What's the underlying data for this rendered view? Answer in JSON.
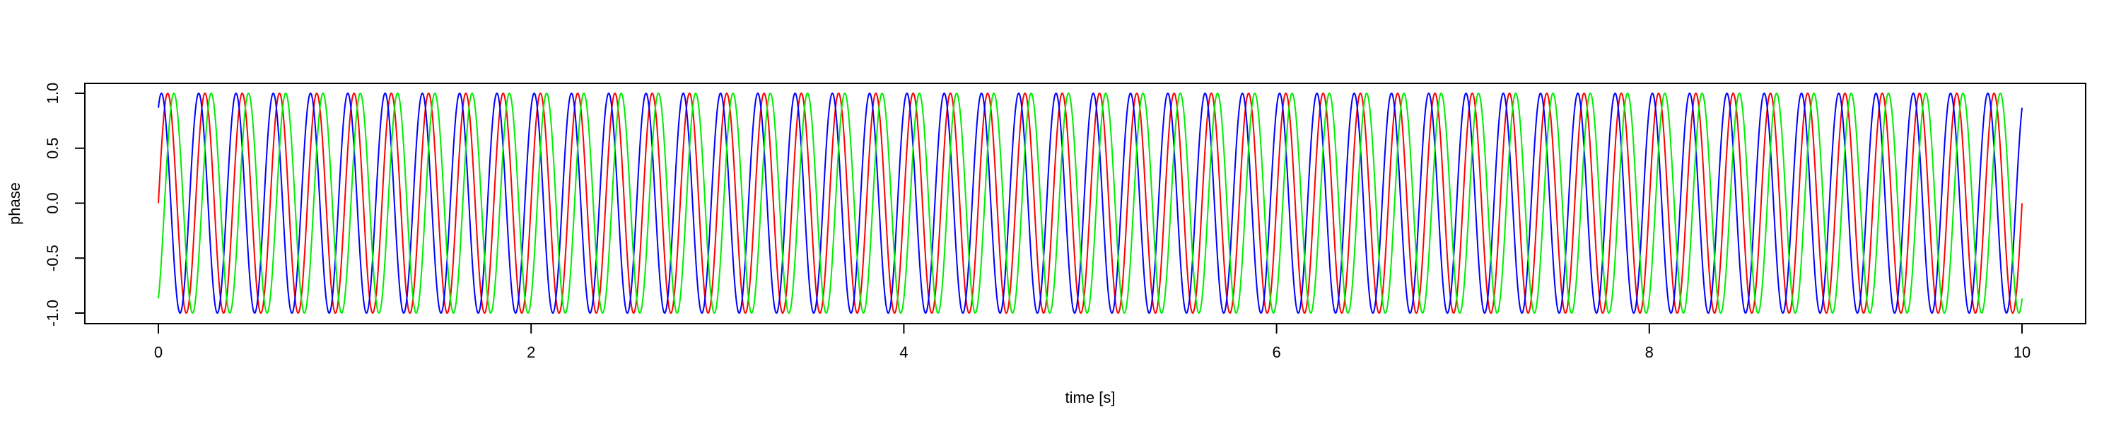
{
  "chart_data": {
    "type": "line",
    "title": "",
    "xlabel": "time [s]",
    "ylabel": "phase",
    "xlim": [
      0,
      10
    ],
    "ylim": [
      -1,
      1
    ],
    "xticks": [
      0,
      2,
      4,
      6,
      8,
      10
    ],
    "xtick_labels": [
      "0",
      "2",
      "4",
      "6",
      "8",
      "10"
    ],
    "yticks": [
      -1,
      -0.5,
      0,
      0.5,
      1
    ],
    "ytick_labels": [
      "-1.0",
      "-0.5",
      "0.0",
      "0.5",
      "1.0"
    ],
    "grid": false,
    "legend": "none",
    "series": [
      {
        "color": "#ff0000",
        "amplitude": 1,
        "frequency_hz": 5,
        "phase_rad": 0
      },
      {
        "color": "#0000ff",
        "amplitude": 1,
        "frequency_hz": 5,
        "phase_rad": 1.05
      },
      {
        "color": "#00ee00",
        "amplitude": 1,
        "frequency_hz": 5,
        "phase_rad": -1.05
      }
    ]
  }
}
